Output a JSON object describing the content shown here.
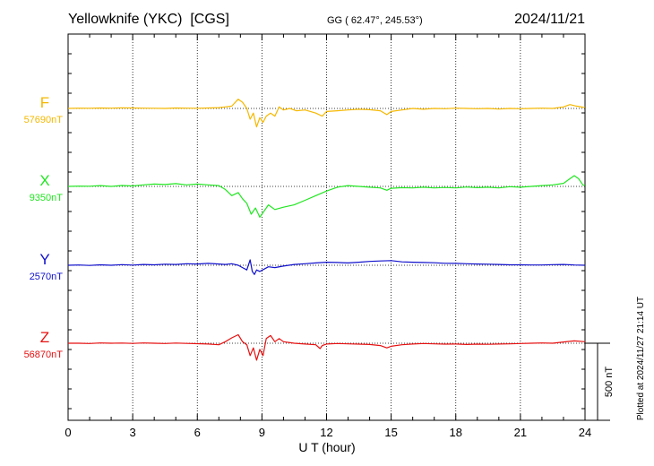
{
  "header": {
    "station": "Yellowknife (YKC)  [CGS]",
    "coords": "GG ( 62.47°, 245.53°)",
    "date": "2024/11/21"
  },
  "footer": {
    "plotted": "Plotted at 2024/11/27 21:14 UT"
  },
  "chart_data": {
    "type": "line",
    "xlabel": "U T (hour)",
    "xlim": [
      0,
      24
    ],
    "x_ticks": [
      0,
      3,
      6,
      9,
      12,
      15,
      18,
      21,
      24
    ],
    "x_tick_labels": [
      "0",
      "3",
      "6",
      "9",
      "12",
      "15",
      "18",
      "21",
      "24"
    ],
    "scale_bar_label": "500 nT",
    "scale_bar_nT": 500,
    "series": [
      {
        "name": "F",
        "baseline_label": "57690nT",
        "baseline_nT": 57690,
        "color": "#f5b800",
        "t": [
          0,
          0.5,
          1,
          1.5,
          2,
          2.5,
          3,
          3.5,
          4,
          4.5,
          5,
          5.5,
          6,
          6.5,
          7,
          7.3,
          7.6,
          7.9,
          8.1,
          8.3,
          8.45,
          8.6,
          8.75,
          8.9,
          9.05,
          9.2,
          9.4,
          9.6,
          9.8,
          10,
          10.3,
          10.6,
          11,
          11.5,
          11.8,
          12,
          12.5,
          13,
          13.5,
          14,
          14.5,
          14.8,
          15,
          15.5,
          16,
          16.5,
          17,
          17.5,
          18,
          18.5,
          19,
          19.5,
          20,
          20.5,
          21,
          21.5,
          22,
          22.5,
          23,
          23.3,
          23.6,
          23.9,
          24
        ],
        "v": [
          7690,
          7692,
          7691,
          7693,
          7692,
          7694,
          7693,
          7692,
          7691,
          7690,
          7693,
          7692,
          7691,
          7693,
          7695,
          7700,
          7705,
          7750,
          7730,
          7690,
          7620,
          7660,
          7570,
          7630,
          7600,
          7640,
          7660,
          7640,
          7700,
          7680,
          7690,
          7675,
          7680,
          7660,
          7640,
          7670,
          7675,
          7680,
          7685,
          7682,
          7675,
          7650,
          7670,
          7680,
          7690,
          7685,
          7690,
          7688,
          7692,
          7690,
          7688,
          7690,
          7686,
          7690,
          7688,
          7690,
          7692,
          7690,
          7700,
          7715,
          7705,
          7698,
          7695
        ]
      },
      {
        "name": "X",
        "baseline_label": "9350nT",
        "baseline_nT": 9350,
        "color": "#22e622",
        "t": [
          0,
          0.5,
          1,
          1.5,
          2,
          2.5,
          3,
          3.5,
          4,
          4.5,
          5,
          5.5,
          6,
          6.5,
          7,
          7.3,
          7.6,
          7.9,
          8.1,
          8.3,
          8.5,
          8.7,
          8.9,
          9.1,
          9.3,
          9.6,
          10,
          10.5,
          11,
          11.5,
          12,
          12.5,
          13,
          13.5,
          14,
          14.5,
          14.8,
          15,
          15.5,
          16,
          16.5,
          17,
          17.5,
          18,
          18.5,
          19,
          19.5,
          20,
          20.5,
          21,
          21.5,
          22,
          22.5,
          23,
          23.3,
          23.5,
          23.7,
          23.9,
          24
        ],
        "v": [
          9350,
          9352,
          9351,
          9355,
          9350,
          9356,
          9353,
          9360,
          9365,
          9362,
          9368,
          9360,
          9365,
          9360,
          9355,
          9330,
          9290,
          9310,
          9270,
          9240,
          9170,
          9210,
          9150,
          9190,
          9230,
          9200,
          9215,
          9230,
          9260,
          9290,
          9320,
          9345,
          9355,
          9350,
          9345,
          9340,
          9325,
          9338,
          9342,
          9340,
          9345,
          9340,
          9343,
          9340,
          9346,
          9342,
          9345,
          9340,
          9348,
          9345,
          9350,
          9355,
          9360,
          9370,
          9400,
          9420,
          9400,
          9360,
          9355
        ]
      },
      {
        "name": "Y",
        "baseline_label": "2570nT",
        "baseline_nT": 2570,
        "color": "#1010cc",
        "t": [
          0,
          0.5,
          1,
          1.5,
          2,
          2.5,
          3,
          3.5,
          4,
          4.5,
          5,
          5.5,
          6,
          6.5,
          7,
          7.3,
          7.6,
          7.9,
          8.1,
          8.3,
          8.45,
          8.55,
          8.65,
          8.75,
          8.9,
          9.1,
          9.3,
          9.6,
          10,
          10.5,
          11,
          11.5,
          12,
          12.5,
          13,
          13.5,
          14,
          14.5,
          15,
          15.5,
          16,
          16.5,
          17,
          17.5,
          18,
          18.5,
          19,
          19.5,
          20,
          20.5,
          21,
          21.5,
          22,
          22.5,
          23,
          23.5,
          24
        ],
        "v": [
          2570,
          2572,
          2569,
          2573,
          2570,
          2574,
          2571,
          2575,
          2573,
          2577,
          2575,
          2580,
          2578,
          2582,
          2578,
          2575,
          2580,
          2570,
          2555,
          2540,
          2605,
          2530,
          2510,
          2540,
          2530,
          2545,
          2560,
          2555,
          2565,
          2575,
          2580,
          2585,
          2590,
          2588,
          2585,
          2590,
          2595,
          2598,
          2600,
          2592,
          2590,
          2588,
          2586,
          2583,
          2582,
          2580,
          2578,
          2577,
          2575,
          2573,
          2573,
          2572,
          2572,
          2574,
          2575,
          2572,
          2570
        ]
      },
      {
        "name": "Z",
        "baseline_label": "56870nT",
        "baseline_nT": 56870,
        "color": "#e61010",
        "t": [
          0,
          0.5,
          1,
          1.5,
          2,
          2.5,
          3,
          3.5,
          4,
          4.5,
          5,
          5.5,
          6,
          6.5,
          7,
          7.3,
          7.6,
          7.9,
          8.1,
          8.3,
          8.45,
          8.6,
          8.75,
          8.9,
          9.05,
          9.2,
          9.4,
          9.6,
          9.8,
          10,
          10.5,
          11,
          11.5,
          11.7,
          11.8,
          12,
          12.5,
          13,
          13.5,
          14,
          14.5,
          14.8,
          15,
          15.5,
          16,
          16.5,
          17,
          17.5,
          18,
          18.5,
          19,
          19.5,
          20,
          20.5,
          21,
          21.5,
          22,
          22.5,
          23,
          23.5,
          24
        ],
        "v": [
          6870,
          6870,
          6868,
          6872,
          6870,
          6871,
          6869,
          6872,
          6870,
          6868,
          6871,
          6869,
          6867,
          6865,
          6860,
          6880,
          6905,
          6925,
          6880,
          6860,
          6790,
          6840,
          6760,
          6830,
          6790,
          6900,
          6920,
          6880,
          6900,
          6880,
          6870,
          6865,
          6860,
          6835,
          6855,
          6865,
          6868,
          6866,
          6864,
          6862,
          6855,
          6840,
          6850,
          6860,
          6865,
          6868,
          6866,
          6864,
          6865,
          6862,
          6864,
          6863,
          6865,
          6866,
          6868,
          6870,
          6872,
          6870,
          6878,
          6885,
          6880
        ]
      }
    ]
  }
}
